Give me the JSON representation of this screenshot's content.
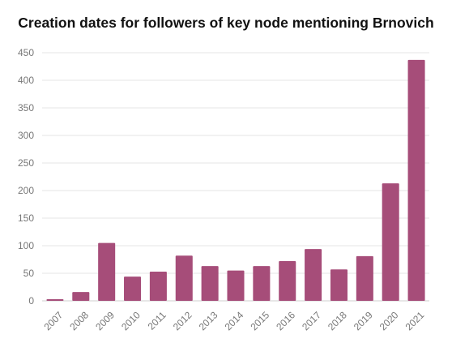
{
  "title": "Creation dates for followers of key node mentioning Brnovich",
  "colors": {
    "bar": "#A64D79",
    "grid": "#e6e6e6",
    "tick_text": "#777777",
    "title": "#111111"
  },
  "chart_data": {
    "type": "bar",
    "title": "Creation dates for followers of key node mentioning Brnovich",
    "xlabel": "",
    "ylabel": "",
    "categories": [
      "2007",
      "2008",
      "2009",
      "2010",
      "2011",
      "2012",
      "2013",
      "2014",
      "2015",
      "2016",
      "2017",
      "2018",
      "2019",
      "2020",
      "2021"
    ],
    "values": [
      3,
      16,
      105,
      44,
      53,
      82,
      63,
      55,
      63,
      72,
      94,
      57,
      81,
      213,
      437
    ],
    "ylim": [
      0,
      450
    ],
    "yticks": [
      0,
      50,
      100,
      150,
      200,
      250,
      300,
      350,
      400,
      450
    ],
    "grid": true,
    "legend": "none"
  }
}
